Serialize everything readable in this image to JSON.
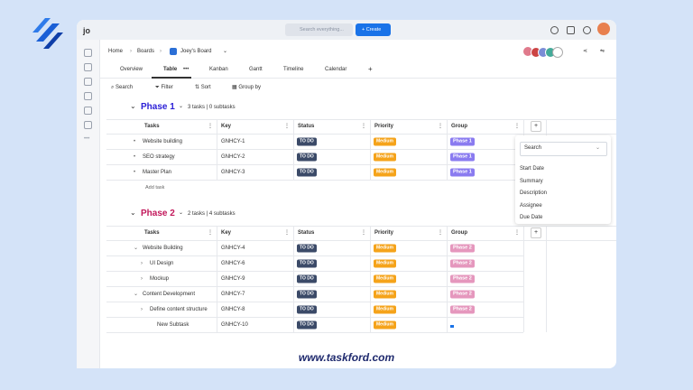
{
  "logo_text": "jo",
  "topbar": {
    "search_placeholder": "Search everything...",
    "create": "Create"
  },
  "breadcrumb": [
    "Home",
    "Boards",
    "Joey's Board"
  ],
  "tabs": [
    "Overview",
    "Table",
    "Kanban",
    "Gantt",
    "Timeline",
    "Calendar"
  ],
  "toolbar": [
    "Search",
    "Filter",
    "Sort",
    "Group by"
  ],
  "columns": [
    "Tasks",
    "Key",
    "Status",
    "Priority",
    "Group"
  ],
  "groups": [
    {
      "title": "Phase 1",
      "summary": "3 tasks | 0 subtasks",
      "color": "#2a1ed6",
      "badge_color": "#8a7bf0",
      "rows": [
        {
          "task": "Website building",
          "key": "GNHCY-1",
          "status": "TO DO",
          "priority": "Medium",
          "group": "Phase 1"
        },
        {
          "task": "SEO strategy",
          "key": "GNHCY-2",
          "status": "TO DO",
          "priority": "Medium",
          "group": "Phase 1"
        },
        {
          "task": "Master Plan",
          "key": "GNHCY-3",
          "status": "TO DO",
          "priority": "Medium",
          "group": "Phase 1"
        }
      ],
      "add_task": "Add task"
    },
    {
      "title": "Phase 2",
      "summary": "2 tasks | 4 subtasks",
      "color": "#c2185b",
      "badge_color": "#e597bd",
      "rows": [
        {
          "task": "Website Building",
          "key": "GNHCY-4",
          "status": "TO DO",
          "priority": "Medium",
          "group": "Phase 2"
        },
        {
          "task": "UI Design",
          "key": "GNHCY-6",
          "status": "TO DO",
          "priority": "Medium",
          "group": "Phase 2"
        },
        {
          "task": "Mockup",
          "key": "GNHCY-9",
          "status": "TO DO",
          "priority": "Medium",
          "group": "Phase 2"
        },
        {
          "task": "Content Development",
          "key": "GNHCY-7",
          "status": "TO DO",
          "priority": "Medium",
          "group": "Phase 2"
        },
        {
          "task": "Define content structure",
          "key": "GNHCY-8",
          "status": "TO DO",
          "priority": "Medium",
          "group": "Phase 2"
        },
        {
          "task": "New Subtask",
          "key": "GNHCY-10",
          "status": "TO DO",
          "priority": "Medium",
          "group": null
        }
      ]
    }
  ],
  "dropdown": {
    "search": "Search",
    "options": [
      "Start Date",
      "Summary",
      "Description",
      "Assignee",
      "Due Date"
    ]
  },
  "footer": "www.taskford.com"
}
